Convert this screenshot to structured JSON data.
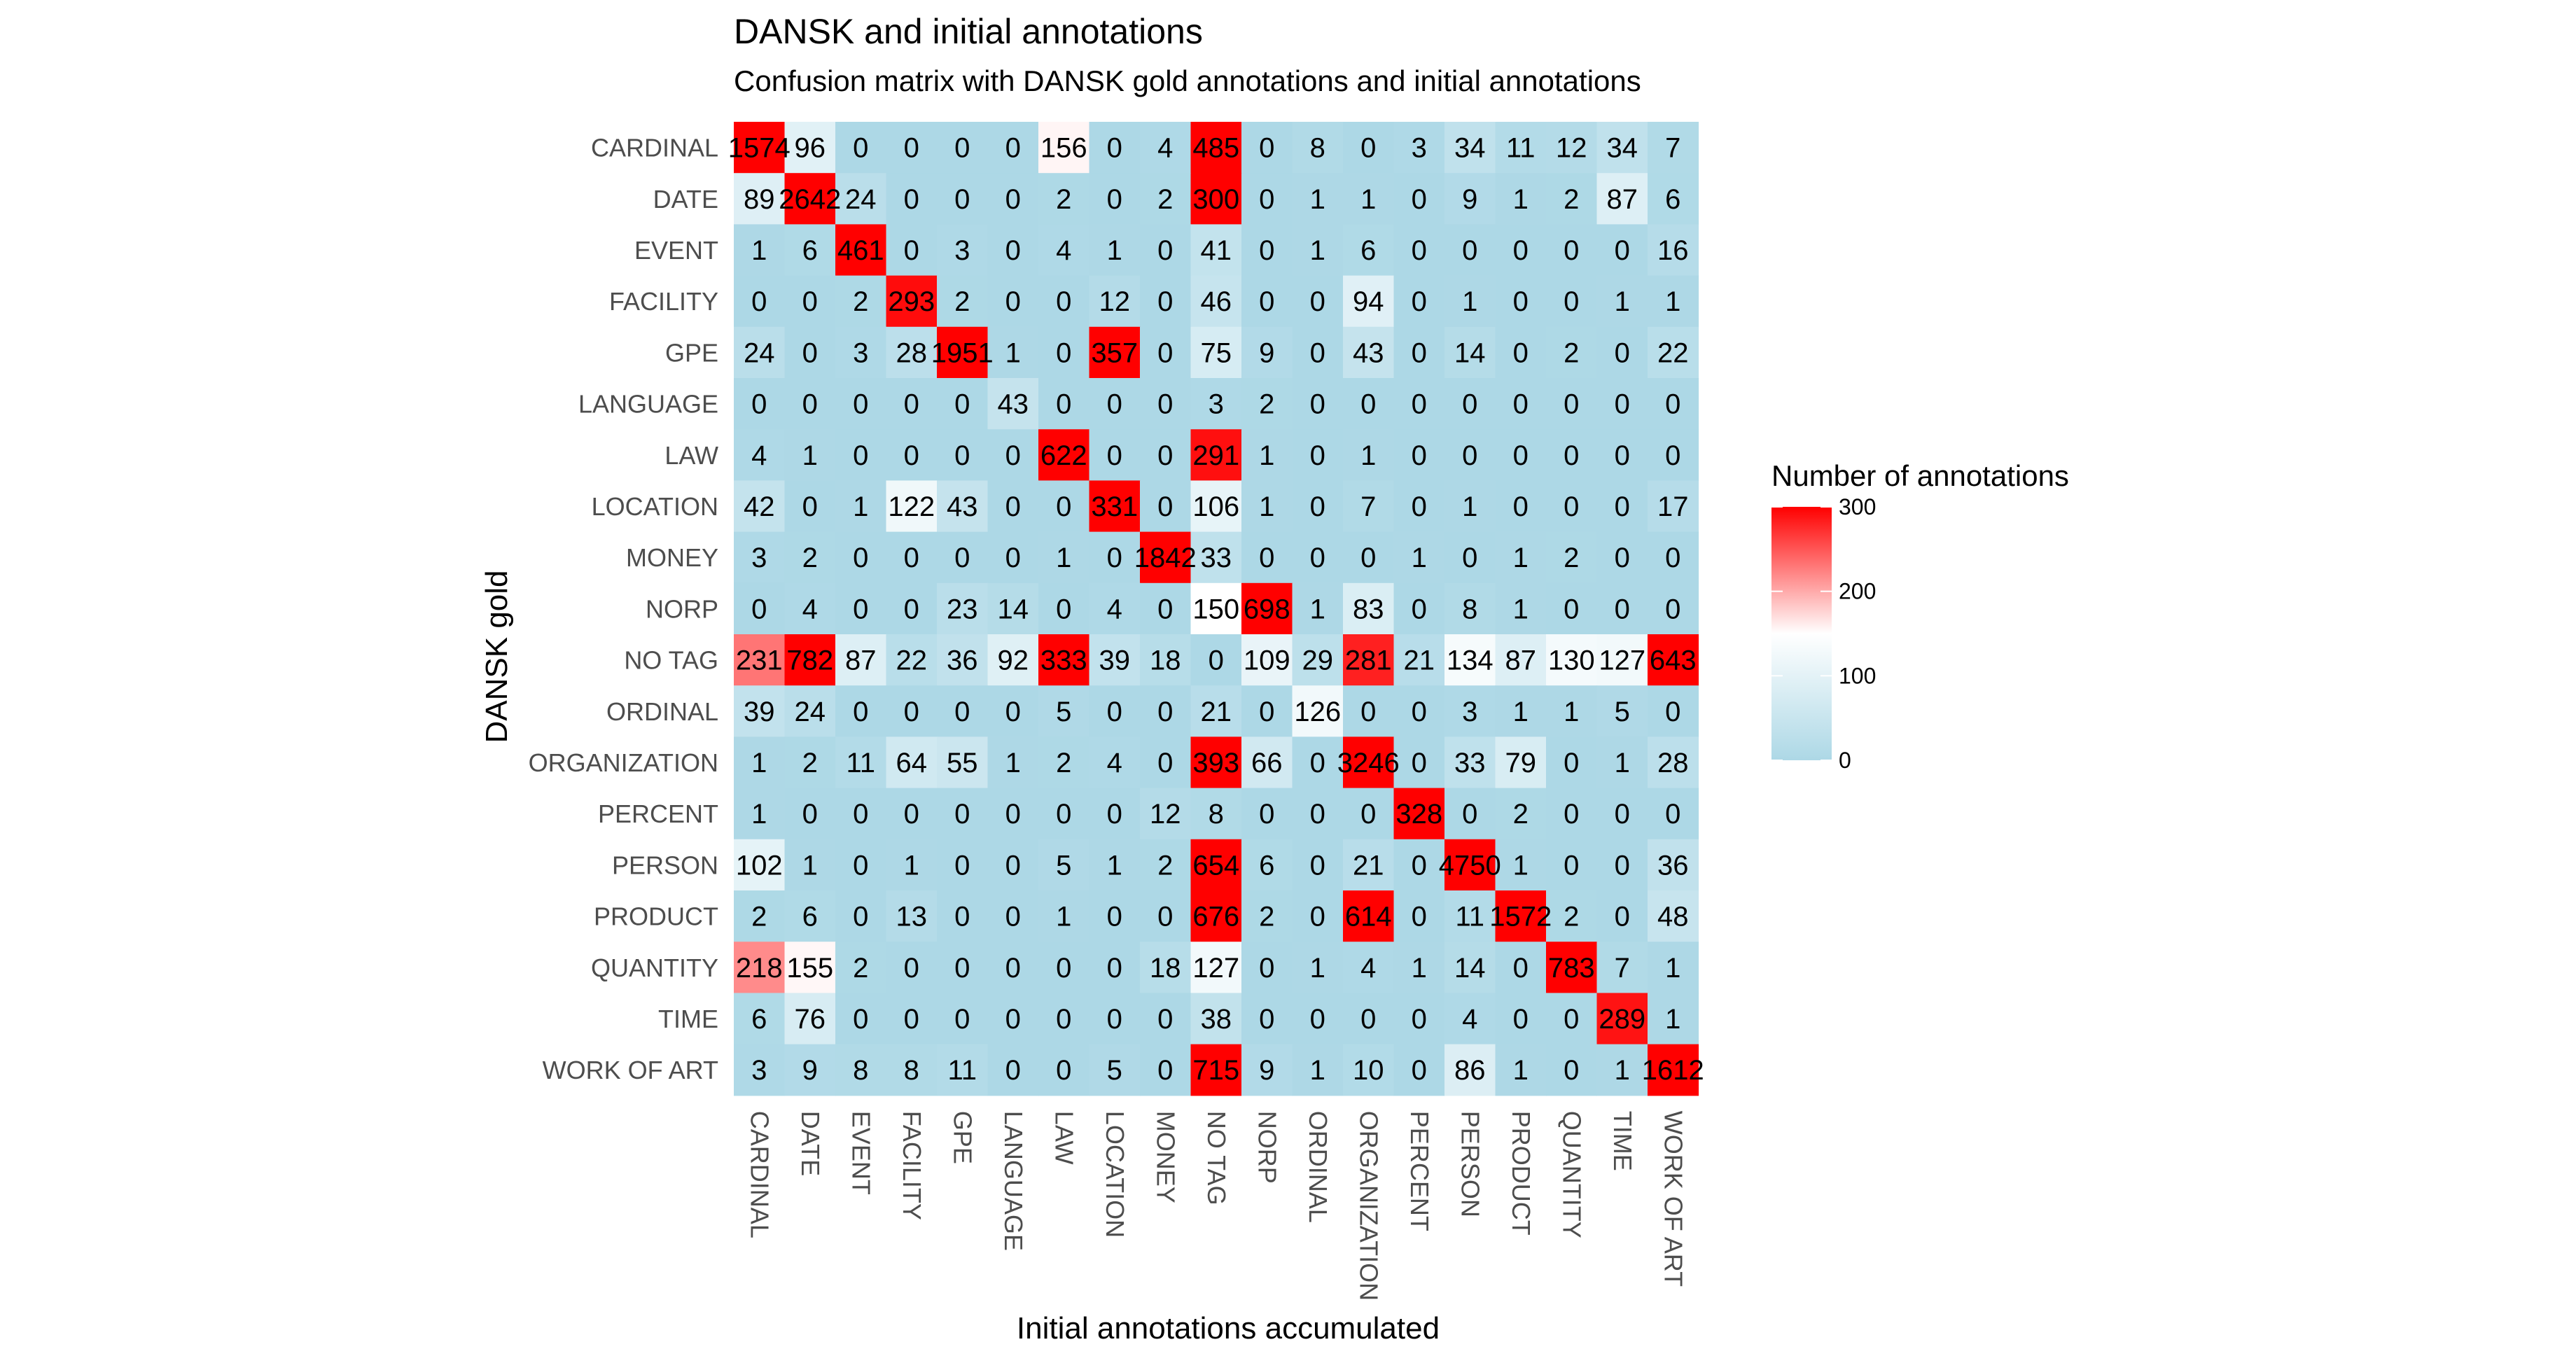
{
  "chart_data": {
    "type": "heatmap",
    "title": "DANSK and initial annotations",
    "subtitle": "Confusion matrix with DANSK gold annotations and initial annotations",
    "xlabel": "Initial annotations accumulated",
    "ylabel": "DANSK gold",
    "x_categories": [
      "CARDINAL",
      "DATE",
      "EVENT",
      "FACILITY",
      "GPE",
      "LANGUAGE",
      "LAW",
      "LOCATION",
      "MONEY",
      "NO TAG",
      "NORP",
      "ORDINAL",
      "ORGANIZATION",
      "PERCENT",
      "PERSON",
      "PRODUCT",
      "QUANTITY",
      "TIME",
      "WORK OF ART"
    ],
    "y_categories": [
      "CARDINAL",
      "DATE",
      "EVENT",
      "FACILITY",
      "GPE",
      "LANGUAGE",
      "LAW",
      "LOCATION",
      "MONEY",
      "NORP",
      "NO TAG",
      "ORDINAL",
      "ORGANIZATION",
      "PERCENT",
      "PERSON",
      "PRODUCT",
      "QUANTITY",
      "TIME",
      "WORK OF ART"
    ],
    "values": [
      [
        1574,
        96,
        0,
        0,
        0,
        0,
        156,
        0,
        4,
        485,
        0,
        8,
        0,
        3,
        34,
        11,
        12,
        34,
        7
      ],
      [
        89,
        2642,
        24,
        0,
        0,
        0,
        2,
        0,
        2,
        300,
        0,
        1,
        1,
        0,
        9,
        1,
        2,
        87,
        6
      ],
      [
        1,
        6,
        461,
        0,
        3,
        0,
        4,
        1,
        0,
        41,
        0,
        1,
        6,
        0,
        0,
        0,
        0,
        0,
        16
      ],
      [
        0,
        0,
        2,
        293,
        2,
        0,
        0,
        12,
        0,
        46,
        0,
        0,
        94,
        0,
        1,
        0,
        0,
        1,
        1
      ],
      [
        24,
        0,
        3,
        28,
        1951,
        1,
        0,
        357,
        0,
        75,
        9,
        0,
        43,
        0,
        14,
        0,
        2,
        0,
        22
      ],
      [
        0,
        0,
        0,
        0,
        0,
        43,
        0,
        0,
        0,
        3,
        2,
        0,
        0,
        0,
        0,
        0,
        0,
        0,
        0
      ],
      [
        4,
        1,
        0,
        0,
        0,
        0,
        622,
        0,
        0,
        291,
        1,
        0,
        1,
        0,
        0,
        0,
        0,
        0,
        0
      ],
      [
        42,
        0,
        1,
        122,
        43,
        0,
        0,
        331,
        0,
        106,
        1,
        0,
        7,
        0,
        1,
        0,
        0,
        0,
        17
      ],
      [
        3,
        2,
        0,
        0,
        0,
        0,
        1,
        0,
        1842,
        33,
        0,
        0,
        0,
        1,
        0,
        1,
        2,
        0,
        0
      ],
      [
        0,
        4,
        0,
        0,
        23,
        14,
        0,
        4,
        0,
        150,
        698,
        1,
        83,
        0,
        8,
        1,
        0,
        0,
        0
      ],
      [
        231,
        782,
        87,
        22,
        36,
        92,
        333,
        39,
        18,
        0,
        109,
        29,
        281,
        21,
        134,
        87,
        130,
        127,
        643
      ],
      [
        39,
        24,
        0,
        0,
        0,
        0,
        5,
        0,
        0,
        21,
        0,
        126,
        0,
        0,
        3,
        1,
        1,
        5,
        0
      ],
      [
        1,
        2,
        11,
        64,
        55,
        1,
        2,
        4,
        0,
        393,
        66,
        0,
        3246,
        0,
        33,
        79,
        0,
        1,
        28
      ],
      [
        1,
        0,
        0,
        0,
        0,
        0,
        0,
        0,
        12,
        8,
        0,
        0,
        0,
        328,
        0,
        2,
        0,
        0,
        0
      ],
      [
        102,
        1,
        0,
        1,
        0,
        0,
        5,
        1,
        2,
        654,
        6,
        0,
        21,
        0,
        4750,
        1,
        0,
        0,
        36
      ],
      [
        2,
        6,
        0,
        13,
        0,
        0,
        1,
        0,
        0,
        676,
        2,
        0,
        614,
        0,
        11,
        1572,
        2,
        0,
        48
      ],
      [
        218,
        155,
        2,
        0,
        0,
        0,
        0,
        0,
        18,
        127,
        0,
        1,
        4,
        1,
        14,
        0,
        783,
        7,
        1
      ],
      [
        6,
        76,
        0,
        0,
        0,
        0,
        0,
        0,
        0,
        38,
        0,
        0,
        0,
        0,
        4,
        0,
        0,
        289,
        1
      ],
      [
        3,
        9,
        8,
        8,
        11,
        0,
        0,
        5,
        0,
        715,
        9,
        1,
        10,
        0,
        86,
        1,
        0,
        1,
        1612
      ]
    ],
    "color_scale": {
      "low": "#add8e6",
      "mid": "#ffffff",
      "high": "#ff0000",
      "midpoint": 150,
      "limits": [
        0,
        300
      ]
    },
    "legend": {
      "title": "Number of annotations",
      "breaks": [
        "0",
        "100",
        "200",
        "300"
      ],
      "position": "right"
    },
    "grid": false
  }
}
